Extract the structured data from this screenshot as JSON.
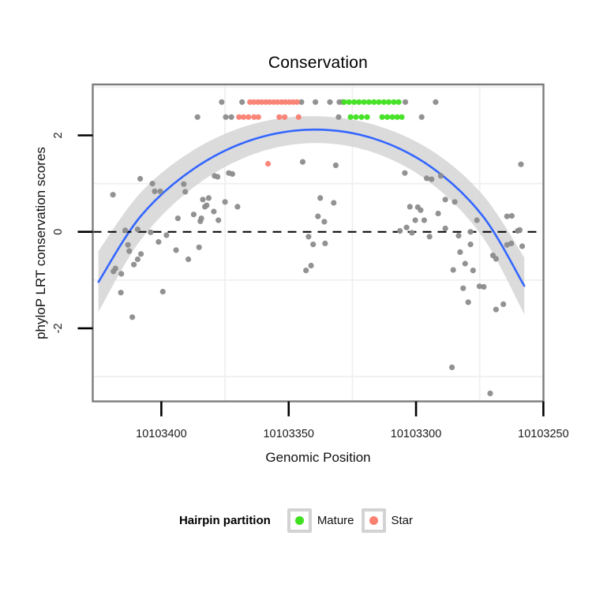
{
  "figure": {
    "title": "Conservation"
  },
  "axes": {
    "x": {
      "title": "Genomic Position",
      "tick_labels": [
        "10103400",
        "10103350",
        "10103300",
        "10103250"
      ],
      "tick_values": [
        10103400,
        10103350,
        10103300,
        10103250
      ],
      "reversed": true,
      "minor_gridlines": [
        10103375,
        10103325,
        10103275
      ]
    },
    "y": {
      "title": "phyloP LRT conservation scores",
      "tick_labels": [
        "2",
        "0",
        "-2"
      ],
      "tick_values": [
        2,
        0,
        -2
      ],
      "minor_gridlines": [
        3,
        1,
        -1,
        -3
      ]
    }
  },
  "legend": {
    "title": "Hairpin partition",
    "items": [
      {
        "label": "Mature",
        "color": "#3fe01f"
      },
      {
        "label": "Star",
        "color": "#fa8072"
      }
    ]
  },
  "colors": {
    "point_other": "#8c8c8c",
    "point_mature": "#3fe01f",
    "point_star": "#fa8072",
    "smooth_line": "#3366ff",
    "ci_ribbon": "#d5d5d5",
    "zero_line": "#000000",
    "panel_border": "#7c7c7c",
    "gridline": "#efefef",
    "tick_text": "#1a1a1a"
  },
  "chart_data": {
    "type": "scatter",
    "title": "Conservation",
    "xlabel": "Genomic Position",
    "ylabel": "phyloP LRT conservation scores",
    "xlim": [
      10103427,
      10103250
    ],
    "x_reversed": true,
    "ylim": [
      -3.52,
      3.06
    ],
    "zero_line": {
      "y": 0,
      "style": "dashed"
    },
    "legend_position": "bottom",
    "smooth": {
      "line": [
        [
          10103424.7,
          -1.04
        ],
        [
          10103408.0,
          0.33
        ],
        [
          10103387.2,
          1.31
        ],
        [
          10103364.3,
          1.91
        ],
        [
          10103340.3,
          2.12
        ],
        [
          10103316.4,
          1.93
        ],
        [
          10103293.7,
          1.33
        ],
        [
          10103273.7,
          0.32
        ],
        [
          10103257.5,
          -1.12
        ]
      ],
      "ci_upper": [
        [
          10103424.7,
          -0.4
        ],
        [
          10103408.0,
          0.82
        ],
        [
          10103387.2,
          1.7
        ],
        [
          10103364.3,
          2.23
        ],
        [
          10103340.3,
          2.4
        ],
        [
          10103316.4,
          2.22
        ],
        [
          10103293.7,
          1.68
        ],
        [
          10103273.7,
          0.76
        ],
        [
          10103257.5,
          -0.53
        ]
      ],
      "ci_lower": [
        [
          10103424.7,
          -1.66
        ],
        [
          10103408.0,
          -0.16
        ],
        [
          10103387.2,
          0.93
        ],
        [
          10103364.3,
          1.6
        ],
        [
          10103340.3,
          1.84
        ],
        [
          10103316.4,
          1.64
        ],
        [
          10103293.7,
          0.99
        ],
        [
          10103273.7,
          -0.12
        ],
        [
          10103257.5,
          -1.71
        ]
      ]
    },
    "series": [
      {
        "name": "Other",
        "color": "#8c8c8c",
        "points": [
          [
            10103376.3,
            2.69
          ],
          [
            10103368.3,
            2.69
          ],
          [
            10103345.0,
            2.69
          ],
          [
            10103339.5,
            2.69
          ],
          [
            10103333.8,
            2.69
          ],
          [
            10103330.1,
            2.69
          ],
          [
            10103328.8,
            2.69
          ],
          [
            10103304.2,
            2.69
          ],
          [
            10103292.3,
            2.69
          ],
          [
            10103385.8,
            2.38
          ],
          [
            10103374.7,
            2.38
          ],
          [
            10103372.5,
            2.38
          ],
          [
            10103330.4,
            2.38
          ],
          [
            10103297.8,
            2.38
          ],
          [
            10103419.0,
            0.77
          ],
          [
            10103408.3,
            1.1
          ],
          [
            10103403.5,
            1.0
          ],
          [
            10103402.6,
            0.84
          ],
          [
            10103400.4,
            0.84
          ],
          [
            10103391.2,
            0.99
          ],
          [
            10103390.6,
            0.83
          ],
          [
            10103383.7,
            0.67
          ],
          [
            10103382.9,
            0.52
          ],
          [
            10103387.3,
            0.36
          ],
          [
            10103384.7,
            0.22
          ],
          [
            10103393.5,
            0.28
          ],
          [
            10103384.3,
            0.28
          ],
          [
            10103414.2,
            0.03
          ],
          [
            10103409.3,
            0.05
          ],
          [
            10103404.2,
            -0.01
          ],
          [
            10103398.0,
            -0.07
          ],
          [
            10103401.1,
            -0.21
          ],
          [
            10103413.1,
            -0.27
          ],
          [
            10103412.6,
            -0.4
          ],
          [
            10103408.0,
            -0.46
          ],
          [
            10103409.3,
            -0.57
          ],
          [
            10103410.8,
            -0.68
          ],
          [
            10103418.0,
            -0.76
          ],
          [
            10103418.8,
            -0.82
          ],
          [
            10103415.7,
            -0.87
          ],
          [
            10103394.2,
            -0.38
          ],
          [
            10103389.4,
            -0.57
          ],
          [
            10103415.9,
            -1.26
          ],
          [
            10103399.4,
            -1.24
          ],
          [
            10103411.4,
            -1.77
          ],
          [
            10103385.2,
            -0.32
          ],
          [
            10103344.5,
            1.45
          ],
          [
            10103379.1,
            1.16
          ],
          [
            10103377.9,
            1.14
          ],
          [
            10103373.5,
            1.22
          ],
          [
            10103372.1,
            1.2
          ],
          [
            10103381.4,
            0.7
          ],
          [
            10103375.0,
            0.62
          ],
          [
            10103382.2,
            0.55
          ],
          [
            10103379.4,
            0.42
          ],
          [
            10103370.1,
            0.52
          ],
          [
            10103337.6,
            0.7
          ],
          [
            10103338.5,
            0.32
          ],
          [
            10103336.0,
            0.21
          ],
          [
            10103377.6,
            0.24
          ],
          [
            10103342.2,
            -0.1
          ],
          [
            10103340.4,
            -0.26
          ],
          [
            10103335.7,
            -0.24
          ],
          [
            10103343.2,
            -0.8
          ],
          [
            10103341.2,
            -0.7
          ],
          [
            10103331.5,
            1.38
          ],
          [
            10103304.4,
            1.22
          ],
          [
            10103332.3,
            0.6
          ],
          [
            10103295.8,
            1.11
          ],
          [
            10103293.9,
            1.09
          ],
          [
            10103290.3,
            1.16
          ],
          [
            10103288.5,
            0.67
          ],
          [
            10103284.8,
            0.62
          ],
          [
            10103302.4,
            0.52
          ],
          [
            10103299.3,
            0.51
          ],
          [
            10103298.2,
            0.45
          ],
          [
            10103300.3,
            0.24
          ],
          [
            10103296.8,
            0.24
          ],
          [
            10103291.3,
            0.38
          ],
          [
            10103276.1,
            0.24
          ],
          [
            10103303.7,
            0.09
          ],
          [
            10103301.6,
            -0.02
          ],
          [
            10103306.3,
            0.02
          ],
          [
            10103288.5,
            0.07
          ],
          [
            10103294.7,
            -0.1
          ],
          [
            10103283.3,
            -0.08
          ],
          [
            10103278.6,
            0.0
          ],
          [
            10103278.6,
            -0.26
          ],
          [
            10103282.7,
            -0.42
          ],
          [
            10103280.7,
            -0.66
          ],
          [
            10103277.6,
            -0.8
          ],
          [
            10103285.4,
            -0.79
          ],
          [
            10103281.5,
            -1.17
          ],
          [
            10103275.1,
            -1.13
          ],
          [
            10103273.4,
            -1.14
          ],
          [
            10103279.5,
            -1.46
          ],
          [
            10103268.6,
            -1.61
          ],
          [
            10103258.8,
            1.4
          ],
          [
            10103264.3,
            0.32
          ],
          [
            10103262.4,
            0.33
          ],
          [
            10103260.1,
            0.02
          ],
          [
            10103259.3,
            0.04
          ],
          [
            10103264.3,
            -0.27
          ],
          [
            10103262.6,
            -0.24
          ],
          [
            10103258.3,
            -0.3
          ],
          [
            10103269.8,
            -0.49
          ],
          [
            10103268.6,
            -0.56
          ],
          [
            10103265.7,
            -1.5
          ],
          [
            10103285.9,
            -2.81
          ],
          [
            10103270.9,
            -3.35
          ]
        ]
      },
      {
        "name": "Mature",
        "color": "#3fe01f",
        "points": [
          [
            10103328.2,
            2.69
          ],
          [
            10103326.3,
            2.69
          ],
          [
            10103324.3,
            2.69
          ],
          [
            10103322.4,
            2.69
          ],
          [
            10103320.4,
            2.69
          ],
          [
            10103318.5,
            2.69
          ],
          [
            10103316.5,
            2.69
          ],
          [
            10103314.6,
            2.69
          ],
          [
            10103312.6,
            2.69
          ],
          [
            10103310.7,
            2.69
          ],
          [
            10103308.7,
            2.69
          ],
          [
            10103306.8,
            2.69
          ],
          [
            10103325.7,
            2.38
          ],
          [
            10103323.6,
            2.38
          ],
          [
            10103321.4,
            2.38
          ],
          [
            10103319.2,
            2.38
          ],
          [
            10103313.3,
            2.38
          ],
          [
            10103311.3,
            2.38
          ],
          [
            10103309.3,
            2.38
          ],
          [
            10103307.4,
            2.38
          ],
          [
            10103305.6,
            2.38
          ]
        ]
      },
      {
        "name": "Star",
        "color": "#fa8072",
        "points": [
          [
            10103365.2,
            2.69
          ],
          [
            10103363.7,
            2.69
          ],
          [
            10103362.1,
            2.69
          ],
          [
            10103360.6,
            2.69
          ],
          [
            10103359.0,
            2.69
          ],
          [
            10103357.5,
            2.69
          ],
          [
            10103355.9,
            2.69
          ],
          [
            10103354.4,
            2.69
          ],
          [
            10103352.8,
            2.69
          ],
          [
            10103351.3,
            2.69
          ],
          [
            10103349.7,
            2.69
          ],
          [
            10103348.2,
            2.69
          ],
          [
            10103346.7,
            2.69
          ],
          [
            10103369.5,
            2.38
          ],
          [
            10103367.7,
            2.38
          ],
          [
            10103365.8,
            2.38
          ],
          [
            10103363.6,
            2.38
          ],
          [
            10103361.9,
            2.38
          ],
          [
            10103353.7,
            2.38
          ],
          [
            10103351.6,
            2.38
          ],
          [
            10103346.1,
            2.38
          ],
          [
            10103358.1,
            1.41
          ]
        ]
      }
    ]
  }
}
